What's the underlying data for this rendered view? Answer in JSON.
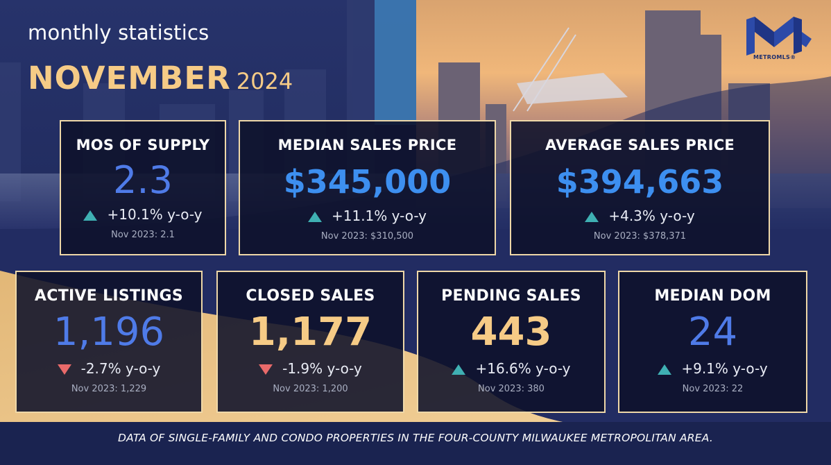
{
  "header": {
    "subtitle": "monthly statistics",
    "month": "NOVEMBER",
    "year": "2024"
  },
  "logo": {
    "text": "METROMLS",
    "registered": "®"
  },
  "colors": {
    "background_navy": "#1b2450",
    "gold": "#f6cb86",
    "value_blue": "#4f7be8",
    "up_teal": "#3fb0b3",
    "down_red": "#e96a6a",
    "card_border": "#efd8a8"
  },
  "cards": {
    "supply": {
      "title": "MOS OF SUPPLY",
      "value": "2.3",
      "direction": "up",
      "change": "+10.1% y-o-y",
      "previous": "Nov 2023: 2.1"
    },
    "median_price": {
      "title": "MEDIAN SALES PRICE",
      "value": "$345,000",
      "direction": "up",
      "change": "+11.1% y-o-y",
      "previous": "Nov 2023: $310,500"
    },
    "average_price": {
      "title": "AVERAGE SALES PRICE",
      "value": "$394,663",
      "direction": "up",
      "change": "+4.3% y-o-y",
      "previous": "Nov 2023: $378,371"
    },
    "active_listings": {
      "title": "ACTIVE LISTINGS",
      "value": "1,196",
      "direction": "down",
      "change": "-2.7% y-o-y",
      "previous": "Nov 2023: 1,229"
    },
    "closed_sales": {
      "title": "CLOSED SALES",
      "value": "1,177",
      "direction": "down",
      "change": "-1.9% y-o-y",
      "previous": "Nov 2023: 1,200"
    },
    "pending_sales": {
      "title": "PENDING SALES",
      "value": "443",
      "direction": "up",
      "change": "+16.6% y-o-y",
      "previous": "Nov 2023: 380"
    },
    "median_dom": {
      "title": "MEDIAN DOM",
      "value": "24",
      "direction": "up",
      "change": "+9.1% y-o-y",
      "previous": "Nov 2023: 22"
    }
  },
  "footnote": "DATA OF SINGLE-FAMILY AND CONDO PROPERTIES IN THE FOUR-COUNTY MILWAUKEE METROPOLITAN AREA."
}
